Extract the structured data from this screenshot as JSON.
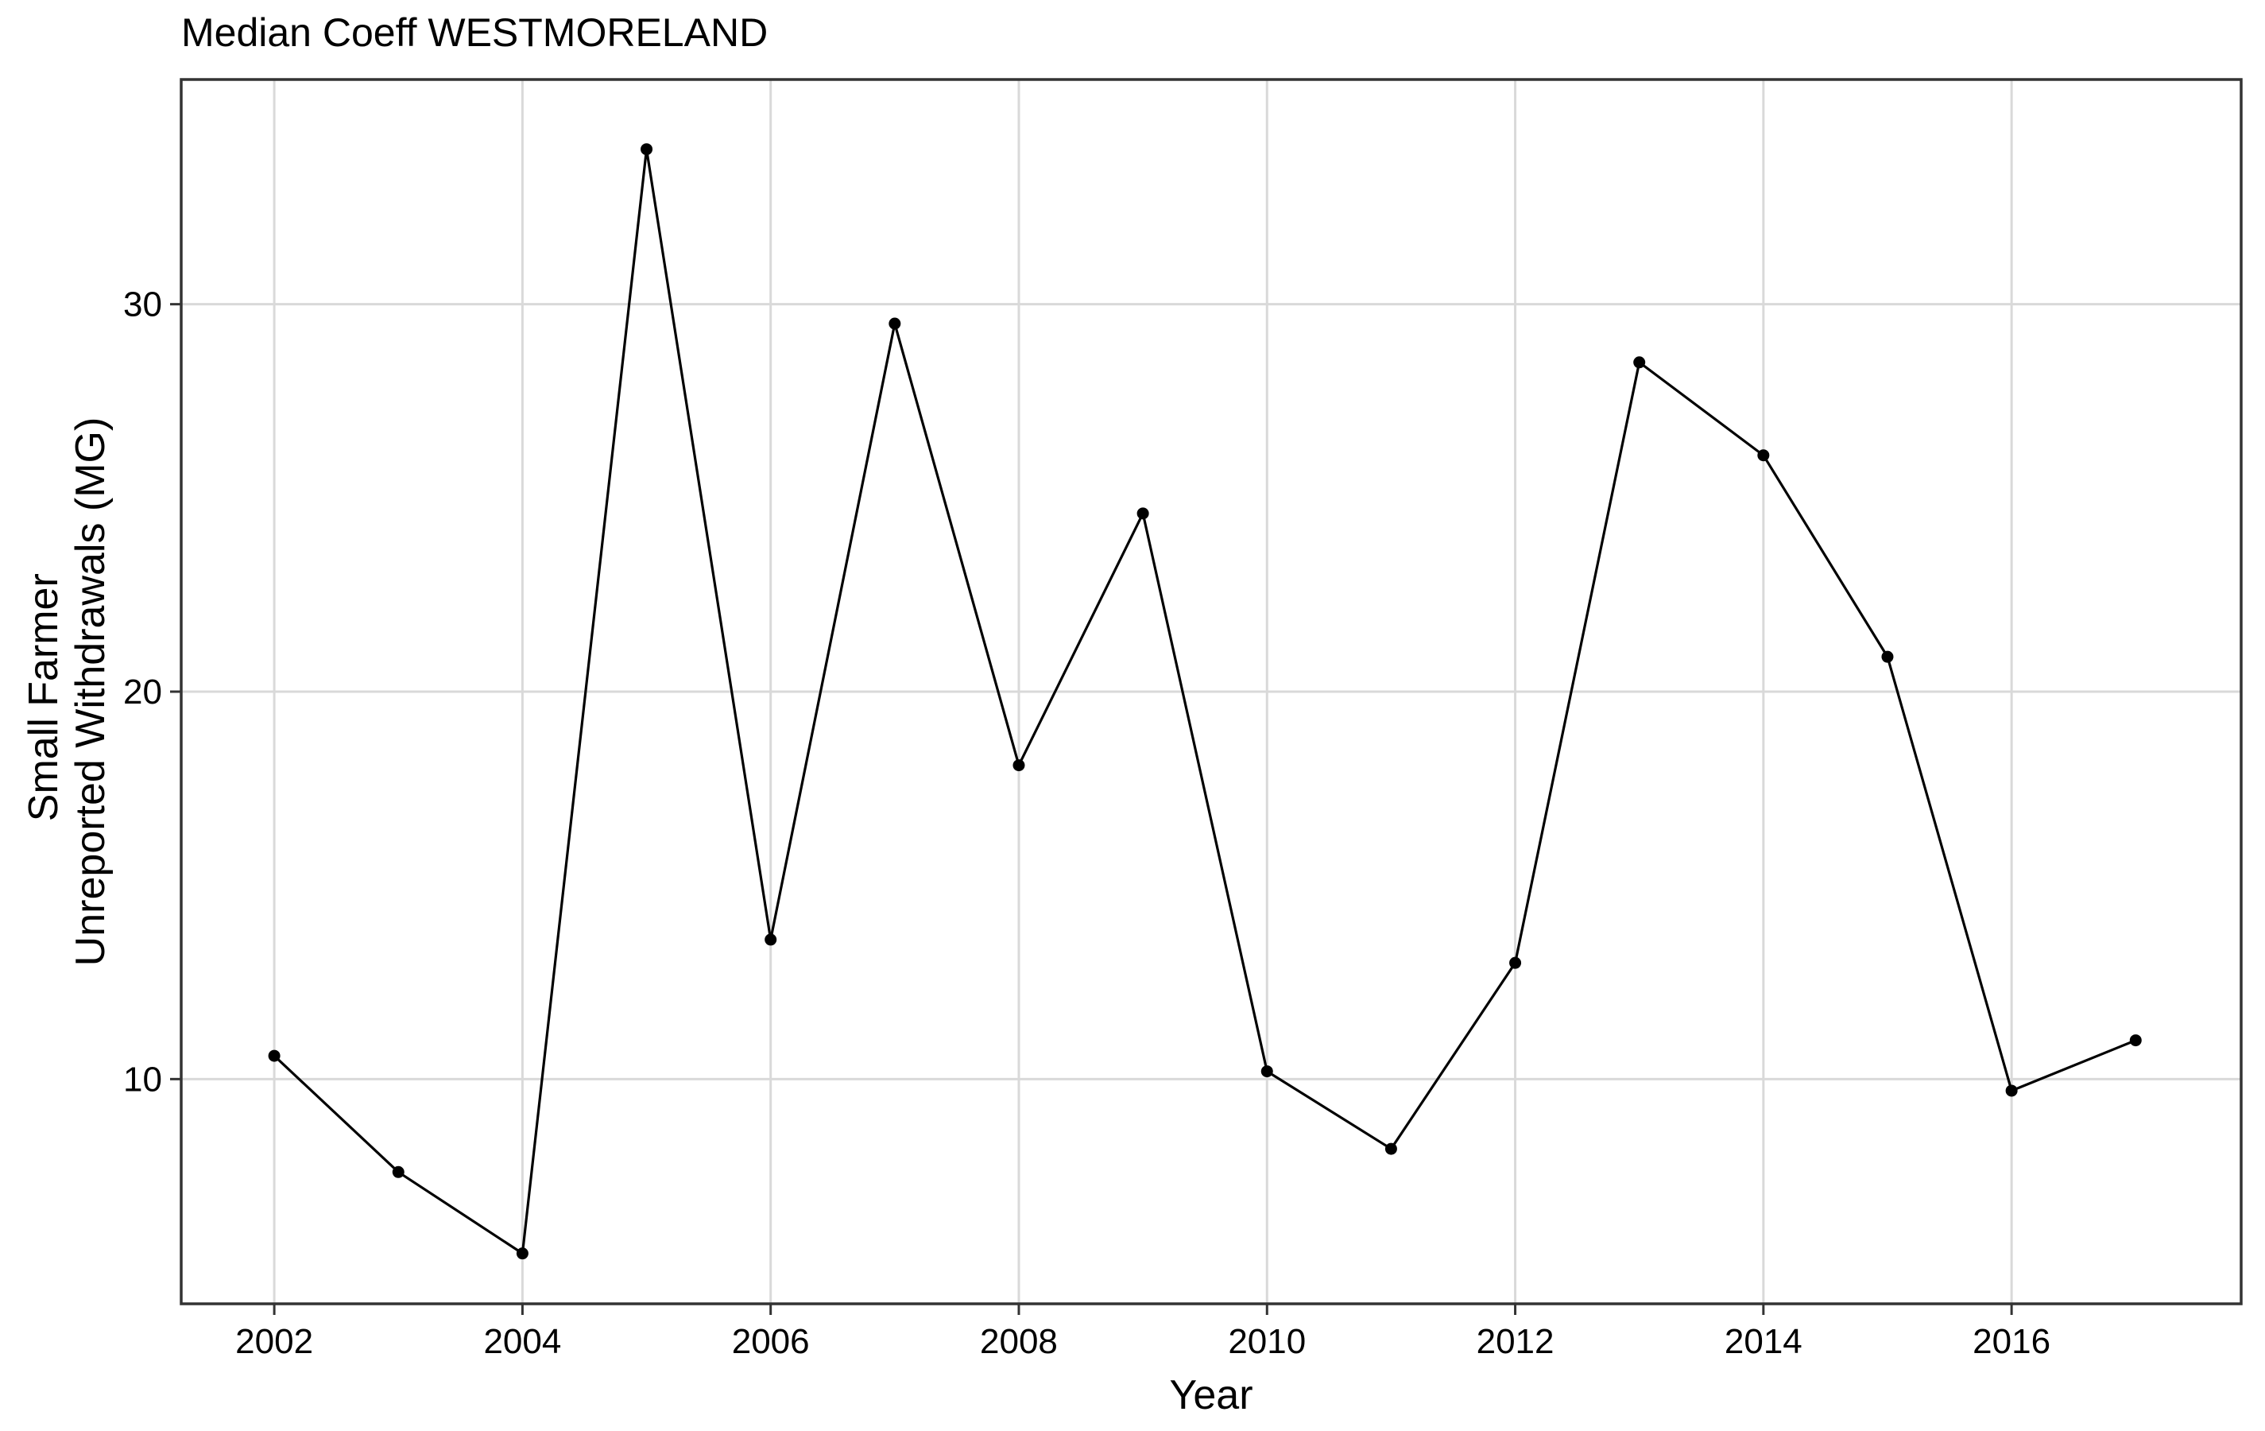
{
  "chart_data": {
    "type": "line",
    "title": "Median Coeff WESTMORELAND",
    "xlabel": "Year",
    "ylabel_lines": [
      "Small Farmer",
      "Unreported Withdrawals (MG)"
    ],
    "xlim": [
      2001.25,
      2017.85
    ],
    "ylim": [
      4.2,
      35.8
    ],
    "x_ticks": [
      2002,
      2004,
      2006,
      2008,
      2010,
      2012,
      2014,
      2016
    ],
    "x_tick_labels": [
      "2002",
      "2004",
      "2006",
      "2008",
      "2010",
      "2012",
      "2014",
      "2016"
    ],
    "y_ticks": [
      10,
      20,
      30
    ],
    "y_tick_labels": [
      "10",
      "20",
      "30"
    ],
    "grid": true,
    "legend": "none",
    "line_color": "#000000",
    "series": [
      {
        "x": [
          2002,
          2003,
          2004,
          2005,
          2006,
          2007,
          2008,
          2009,
          2010,
          2011,
          2012,
          2013,
          2014,
          2015,
          2016,
          2017
        ],
        "values": [
          10.6,
          7.6,
          5.5,
          34.0,
          13.6,
          29.5,
          18.1,
          24.6,
          10.2,
          8.2,
          13.0,
          28.5,
          26.1,
          20.9,
          9.7,
          11.0
        ]
      }
    ]
  }
}
